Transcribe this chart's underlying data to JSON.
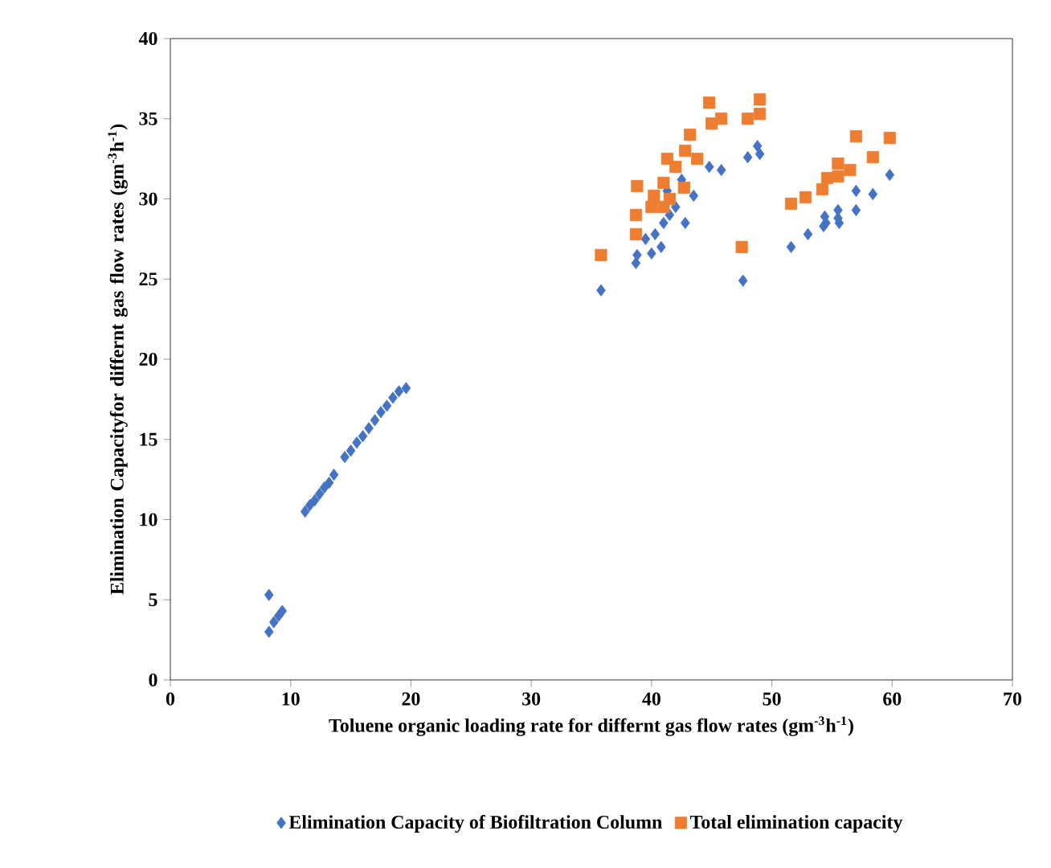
{
  "chart_data": {
    "type": "scatter",
    "xlabel": "Toluene organic loading rate for differnt gas flow rates (gm$^{-3}$h$^{-1}$)",
    "ylabel": "Elimination Capacityfor  differnt gas flow rates (gm$^{-3}$h$^{-1}$)",
    "xlim": [
      0,
      70
    ],
    "ylim": [
      0,
      40
    ],
    "xticks": [
      0,
      10,
      20,
      30,
      40,
      50,
      60,
      70
    ],
    "yticks": [
      0,
      5,
      10,
      15,
      20,
      25,
      30,
      35,
      40
    ],
    "grid": false,
    "legend": "bottom",
    "series": [
      {
        "name": "Elimination Capacity of Biofiltration Column",
        "color": "#4472c4",
        "marker": "diamond",
        "x": [
          8.2,
          8.2,
          8.6,
          9.0,
          9.3,
          11.2,
          11.6,
          12.0,
          12.4,
          12.8,
          13.2,
          13.6,
          14.5,
          15.0,
          15.5,
          16.0,
          16.5,
          17.0,
          17.5,
          18.0,
          18.5,
          19.0,
          19.6,
          35.8,
          38.7,
          38.8,
          39.5,
          40.0,
          40.3,
          40.8,
          41.0,
          41.3,
          41.5,
          42.0,
          42.5,
          42.8,
          43.5,
          44.8,
          45.8,
          47.6,
          48.0,
          48.8,
          49.0,
          51.6,
          53.0,
          54.3,
          54.4,
          54.5,
          55.5,
          55.5,
          55.6,
          57.0,
          57.0,
          58.4,
          59.8
        ],
        "values": [
          5.3,
          3.0,
          3.6,
          4.0,
          4.3,
          10.5,
          10.9,
          11.2,
          11.6,
          12.0,
          12.3,
          12.8,
          13.9,
          14.3,
          14.8,
          15.2,
          15.7,
          16.2,
          16.7,
          17.1,
          17.6,
          18.0,
          18.2,
          24.3,
          26.0,
          26.5,
          27.5,
          26.6,
          27.8,
          27.0,
          28.5,
          30.5,
          29.0,
          29.5,
          31.2,
          28.5,
          30.2,
          32.0,
          31.8,
          24.9,
          32.6,
          33.3,
          32.8,
          27.0,
          27.8,
          28.3,
          28.9,
          28.5,
          29.3,
          28.8,
          28.5,
          29.3,
          30.5,
          30.3,
          31.5
        ]
      },
      {
        "name": "Total elimination capacity",
        "color": "#ed7d31",
        "marker": "square",
        "x": [
          35.8,
          38.7,
          38.7,
          38.8,
          40.0,
          40.2,
          41.0,
          41.0,
          41.3,
          41.5,
          42.0,
          42.7,
          42.8,
          43.2,
          43.8,
          44.8,
          45.0,
          45.8,
          47.5,
          48.0,
          49.0,
          49.0,
          51.6,
          52.8,
          54.2,
          54.6,
          55.5,
          55.5,
          56.5,
          57.0,
          58.4,
          59.8
        ],
        "values": [
          26.5,
          27.8,
          29.0,
          30.8,
          29.5,
          30.2,
          29.5,
          31.0,
          32.5,
          30.0,
          32.0,
          30.7,
          33.0,
          34.0,
          32.5,
          36.0,
          34.7,
          35.0,
          27.0,
          35.0,
          35.3,
          36.2,
          29.7,
          30.1,
          30.6,
          31.3,
          31.4,
          32.2,
          31.8,
          33.9,
          32.6,
          33.8
        ]
      }
    ]
  }
}
